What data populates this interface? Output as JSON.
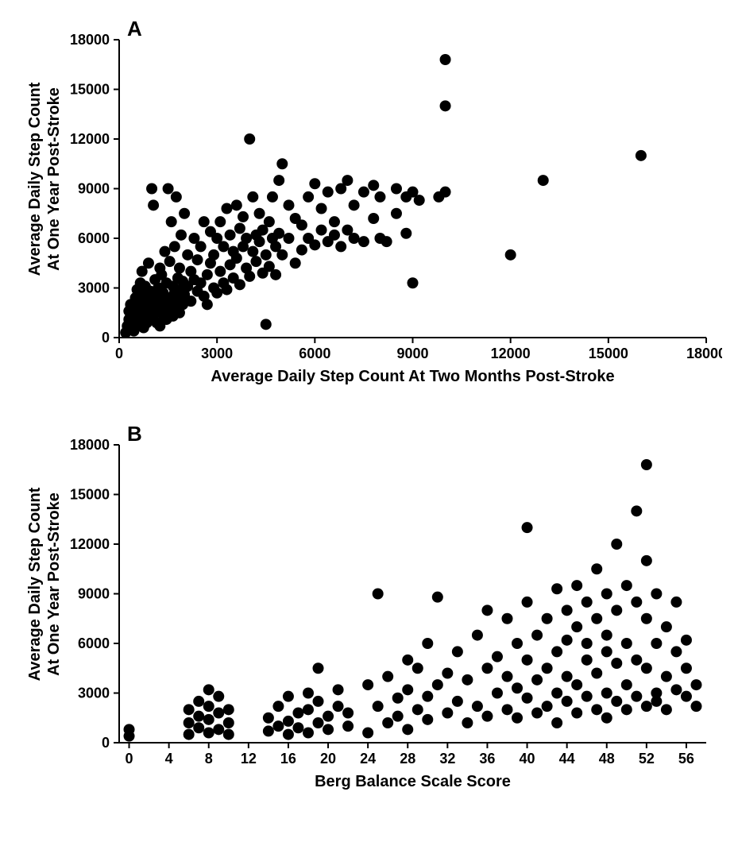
{
  "figure": {
    "background_color": "#ffffff",
    "dot_color": "#000000",
    "axis_color": "#000000",
    "tick_fontsize": 18,
    "label_fontsize": 20,
    "panel_letter_fontsize": 26,
    "dot_radius": 7
  },
  "panelA": {
    "letter": "A",
    "type": "scatter",
    "xlabel": "Average Daily Step Count At Two Months Post-Stroke",
    "ylabel_line1": "Average Daily Step Count",
    "ylabel_line2": "At One Year Post-Stroke",
    "xlim": [
      0,
      18000
    ],
    "ylim": [
      0,
      18000
    ],
    "xticks": [
      0,
      3000,
      6000,
      9000,
      12000,
      15000,
      18000
    ],
    "yticks": [
      0,
      3000,
      6000,
      9000,
      12000,
      15000,
      18000
    ],
    "points": [
      [
        200,
        300
      ],
      [
        250,
        700
      ],
      [
        300,
        1100
      ],
      [
        300,
        1600
      ],
      [
        350,
        2000
      ],
      [
        350,
        500
      ],
      [
        400,
        900
      ],
      [
        400,
        1400
      ],
      [
        450,
        1800
      ],
      [
        450,
        400
      ],
      [
        500,
        2400
      ],
      [
        500,
        1200
      ],
      [
        550,
        2900
      ],
      [
        550,
        800
      ],
      [
        600,
        1700
      ],
      [
        600,
        2200
      ],
      [
        650,
        3300
      ],
      [
        650,
        1000
      ],
      [
        700,
        4000
      ],
      [
        700,
        1500
      ],
      [
        750,
        2600
      ],
      [
        750,
        600
      ],
      [
        800,
        1900
      ],
      [
        800,
        3100
      ],
      [
        850,
        900
      ],
      [
        850,
        2300
      ],
      [
        900,
        1300
      ],
      [
        900,
        4500
      ],
      [
        950,
        1700
      ],
      [
        950,
        2800
      ],
      [
        1000,
        9000
      ],
      [
        1000,
        2000
      ],
      [
        1050,
        8000
      ],
      [
        1050,
        1100
      ],
      [
        1100,
        3500
      ],
      [
        1100,
        1500
      ],
      [
        1150,
        2500
      ],
      [
        1150,
        900
      ],
      [
        1200,
        3000
      ],
      [
        1200,
        1800
      ],
      [
        1250,
        4200
      ],
      [
        1250,
        700
      ],
      [
        1300,
        2200
      ],
      [
        1300,
        3800
      ],
      [
        1350,
        1400
      ],
      [
        1350,
        2700
      ],
      [
        1400,
        5200
      ],
      [
        1400,
        1900
      ],
      [
        1450,
        3300
      ],
      [
        1450,
        1100
      ],
      [
        1500,
        9000
      ],
      [
        1500,
        2400
      ],
      [
        1550,
        1600
      ],
      [
        1550,
        4600
      ],
      [
        1600,
        7000
      ],
      [
        1600,
        2000
      ],
      [
        1650,
        3100
      ],
      [
        1650,
        1300
      ],
      [
        1700,
        2700
      ],
      [
        1700,
        5500
      ],
      [
        1750,
        8500
      ],
      [
        1750,
        1800
      ],
      [
        1800,
        3600
      ],
      [
        1800,
        2300
      ],
      [
        1850,
        4200
      ],
      [
        1850,
        1500
      ],
      [
        1900,
        2900
      ],
      [
        1900,
        6200
      ],
      [
        1950,
        2000
      ],
      [
        1950,
        3400
      ],
      [
        2000,
        7500
      ],
      [
        2000,
        2600
      ],
      [
        2100,
        5000
      ],
      [
        2100,
        3100
      ],
      [
        2200,
        2200
      ],
      [
        2200,
        4000
      ],
      [
        2300,
        3500
      ],
      [
        2300,
        6000
      ],
      [
        2400,
        2800
      ],
      [
        2400,
        4700
      ],
      [
        2500,
        3300
      ],
      [
        2500,
        5500
      ],
      [
        2600,
        2500
      ],
      [
        2600,
        7000
      ],
      [
        2700,
        3800
      ],
      [
        2700,
        2000
      ],
      [
        2800,
        4500
      ],
      [
        2800,
        6400
      ],
      [
        2900,
        3000
      ],
      [
        2900,
        5000
      ],
      [
        3000,
        6000
      ],
      [
        3000,
        2700
      ],
      [
        3100,
        4000
      ],
      [
        3100,
        7000
      ],
      [
        3200,
        3300
      ],
      [
        3200,
        5500
      ],
      [
        3300,
        7800
      ],
      [
        3300,
        2900
      ],
      [
        3400,
        6200
      ],
      [
        3400,
        4400
      ],
      [
        3500,
        5200
      ],
      [
        3500,
        3600
      ],
      [
        3600,
        8000
      ],
      [
        3600,
        4800
      ],
      [
        3700,
        6600
      ],
      [
        3700,
        3200
      ],
      [
        3800,
        5500
      ],
      [
        3800,
        7300
      ],
      [
        3900,
        4200
      ],
      [
        3900,
        6000
      ],
      [
        4000,
        12000
      ],
      [
        4000,
        3700
      ],
      [
        4100,
        5200
      ],
      [
        4100,
        8500
      ],
      [
        4200,
        6200
      ],
      [
        4200,
        4600
      ],
      [
        4300,
        5800
      ],
      [
        4300,
        7500
      ],
      [
        4400,
        3900
      ],
      [
        4400,
        6500
      ],
      [
        4500,
        800
      ],
      [
        4500,
        5000
      ],
      [
        4600,
        7000
      ],
      [
        4600,
        4300
      ],
      [
        4700,
        6000
      ],
      [
        4700,
        8500
      ],
      [
        4800,
        5500
      ],
      [
        4800,
        3800
      ],
      [
        4900,
        9500
      ],
      [
        4900,
        6300
      ],
      [
        5000,
        10500
      ],
      [
        5000,
        5000
      ],
      [
        5200,
        6000
      ],
      [
        5200,
        8000
      ],
      [
        5400,
        4500
      ],
      [
        5400,
        7200
      ],
      [
        5600,
        6800
      ],
      [
        5600,
        5300
      ],
      [
        5800,
        8500
      ],
      [
        5800,
        6000
      ],
      [
        6000,
        5600
      ],
      [
        6000,
        9300
      ],
      [
        6200,
        6500
      ],
      [
        6200,
        7800
      ],
      [
        6400,
        5800
      ],
      [
        6400,
        8800
      ],
      [
        6600,
        7000
      ],
      [
        6600,
        6200
      ],
      [
        6800,
        9000
      ],
      [
        6800,
        5500
      ],
      [
        7000,
        9500
      ],
      [
        7000,
        6500
      ],
      [
        7200,
        8000
      ],
      [
        7200,
        6000
      ],
      [
        7500,
        8800
      ],
      [
        7500,
        5800
      ],
      [
        7800,
        7200
      ],
      [
        7800,
        9200
      ],
      [
        8000,
        8500
      ],
      [
        8000,
        6000
      ],
      [
        8200,
        5800
      ],
      [
        8500,
        7500
      ],
      [
        8500,
        9000
      ],
      [
        8800,
        8500
      ],
      [
        8800,
        6300
      ],
      [
        9000,
        8800
      ],
      [
        9000,
        3300
      ],
      [
        9200,
        8300
      ],
      [
        9800,
        8500
      ],
      [
        10000,
        16800
      ],
      [
        10000,
        14000
      ],
      [
        10000,
        8800
      ],
      [
        12000,
        5000
      ],
      [
        13000,
        9500
      ],
      [
        16000,
        11000
      ]
    ]
  },
  "panelB": {
    "letter": "B",
    "type": "scatter",
    "xlabel": "Berg Balance Scale Score",
    "ylabel_line1": "Average Daily Step Count",
    "ylabel_line2": "At One Year Post-Stroke",
    "xlim": [
      -1,
      58
    ],
    "ylim": [
      0,
      18000
    ],
    "xticks": [
      0,
      4,
      8,
      12,
      16,
      20,
      24,
      28,
      32,
      36,
      40,
      44,
      48,
      52,
      56
    ],
    "yticks": [
      0,
      3000,
      6000,
      9000,
      12000,
      15000,
      18000
    ],
    "points": [
      [
        0,
        400
      ],
      [
        0,
        800
      ],
      [
        6,
        500
      ],
      [
        6,
        1200
      ],
      [
        6,
        2000
      ],
      [
        7,
        900
      ],
      [
        7,
        1600
      ],
      [
        7,
        2500
      ],
      [
        8,
        600
      ],
      [
        8,
        1400
      ],
      [
        8,
        2200
      ],
      [
        8,
        3200
      ],
      [
        9,
        800
      ],
      [
        9,
        1800
      ],
      [
        9,
        2800
      ],
      [
        10,
        500
      ],
      [
        10,
        1200
      ],
      [
        10,
        2000
      ],
      [
        14,
        700
      ],
      [
        14,
        1500
      ],
      [
        15,
        1000
      ],
      [
        15,
        2200
      ],
      [
        16,
        500
      ],
      [
        16,
        1300
      ],
      [
        16,
        2800
      ],
      [
        17,
        900
      ],
      [
        17,
        1800
      ],
      [
        18,
        600
      ],
      [
        18,
        2000
      ],
      [
        18,
        3000
      ],
      [
        19,
        1200
      ],
      [
        19,
        2500
      ],
      [
        19,
        4500
      ],
      [
        20,
        800
      ],
      [
        20,
        1600
      ],
      [
        21,
        2200
      ],
      [
        21,
        3200
      ],
      [
        22,
        1000
      ],
      [
        22,
        1800
      ],
      [
        24,
        600
      ],
      [
        24,
        3500
      ],
      [
        25,
        9000
      ],
      [
        25,
        2200
      ],
      [
        26,
        1200
      ],
      [
        26,
        4000
      ],
      [
        27,
        2700
      ],
      [
        27,
        1600
      ],
      [
        28,
        3200
      ],
      [
        28,
        800
      ],
      [
        28,
        5000
      ],
      [
        29,
        2000
      ],
      [
        29,
        4500
      ],
      [
        30,
        1400
      ],
      [
        30,
        2800
      ],
      [
        30,
        6000
      ],
      [
        31,
        8800
      ],
      [
        31,
        3500
      ],
      [
        32,
        1800
      ],
      [
        32,
        4200
      ],
      [
        33,
        2500
      ],
      [
        33,
        5500
      ],
      [
        34,
        1200
      ],
      [
        34,
        3800
      ],
      [
        35,
        2200
      ],
      [
        35,
        6500
      ],
      [
        36,
        4500
      ],
      [
        36,
        1600
      ],
      [
        36,
        8000
      ],
      [
        37,
        3000
      ],
      [
        37,
        5200
      ],
      [
        38,
        2000
      ],
      [
        38,
        4000
      ],
      [
        38,
        7500
      ],
      [
        39,
        3300
      ],
      [
        39,
        6000
      ],
      [
        39,
        1500
      ],
      [
        40,
        2700
      ],
      [
        40,
        5000
      ],
      [
        40,
        8500
      ],
      [
        40,
        13000
      ],
      [
        41,
        1800
      ],
      [
        41,
        3800
      ],
      [
        41,
        6500
      ],
      [
        42,
        2200
      ],
      [
        42,
        4500
      ],
      [
        42,
        7500
      ],
      [
        43,
        9300
      ],
      [
        43,
        3000
      ],
      [
        43,
        5500
      ],
      [
        43,
        1200
      ],
      [
        44,
        2500
      ],
      [
        44,
        6200
      ],
      [
        44,
        8000
      ],
      [
        44,
        4000
      ],
      [
        45,
        1800
      ],
      [
        45,
        3500
      ],
      [
        45,
        7000
      ],
      [
        45,
        9500
      ],
      [
        46,
        2800
      ],
      [
        46,
        5000
      ],
      [
        46,
        8500
      ],
      [
        46,
        6000
      ],
      [
        47,
        2000
      ],
      [
        47,
        4200
      ],
      [
        47,
        7500
      ],
      [
        47,
        10500
      ],
      [
        48,
        3000
      ],
      [
        48,
        5500
      ],
      [
        48,
        9000
      ],
      [
        48,
        6500
      ],
      [
        48,
        1500
      ],
      [
        49,
        2500
      ],
      [
        49,
        4800
      ],
      [
        49,
        8000
      ],
      [
        49,
        12000
      ],
      [
        50,
        3500
      ],
      [
        50,
        6000
      ],
      [
        50,
        9500
      ],
      [
        50,
        2000
      ],
      [
        51,
        2800
      ],
      [
        51,
        5000
      ],
      [
        51,
        8500
      ],
      [
        51,
        14000
      ],
      [
        52,
        2200
      ],
      [
        52,
        4500
      ],
      [
        52,
        7500
      ],
      [
        52,
        16800
      ],
      [
        52,
        11000
      ],
      [
        53,
        3000
      ],
      [
        53,
        6000
      ],
      [
        53,
        9000
      ],
      [
        53,
        2500
      ],
      [
        54,
        4000
      ],
      [
        54,
        7000
      ],
      [
        54,
        2000
      ],
      [
        55,
        3200
      ],
      [
        55,
        5500
      ],
      [
        55,
        8500
      ],
      [
        56,
        2800
      ],
      [
        56,
        6200
      ],
      [
        56,
        4500
      ],
      [
        57,
        3500
      ],
      [
        57,
        2200
      ]
    ]
  }
}
